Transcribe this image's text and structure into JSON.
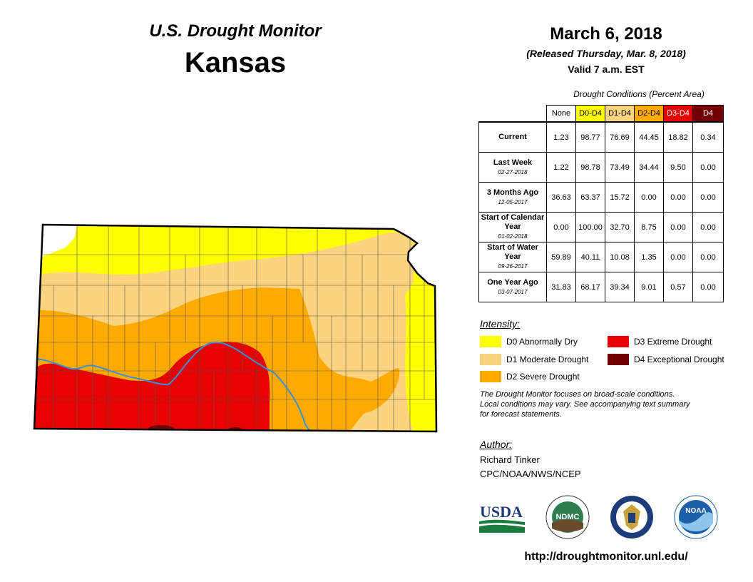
{
  "header": {
    "title": "U.S. Drought Monitor",
    "state": "Kansas"
  },
  "date": {
    "main": "March 6, 2018",
    "released": "(Released Thursday, Mar. 8, 2018)",
    "valid": "Valid 7 a.m. EST"
  },
  "table": {
    "caption": "Drought Conditions (Percent Area)",
    "columns": [
      "None",
      "D0-D4",
      "D1-D4",
      "D2-D4",
      "D3-D4",
      "D4"
    ],
    "column_colors": [
      "#ffffff",
      "#ffff00",
      "#fcd37f",
      "#ffaa00",
      "#e60000",
      "#730000"
    ],
    "rows": [
      {
        "label": "Current",
        "date": "",
        "values": [
          "1.23",
          "98.77",
          "76.69",
          "44.45",
          "18.82",
          "0.34"
        ]
      },
      {
        "label": "Last Week",
        "date": "02-27-2018",
        "values": [
          "1.22",
          "98.78",
          "73.49",
          "34.44",
          "9.50",
          "0.00"
        ]
      },
      {
        "label": "3 Months Ago",
        "date": "12-05-2017",
        "values": [
          "36.63",
          "63.37",
          "15.72",
          "0.00",
          "0.00",
          "0.00"
        ]
      },
      {
        "label": "Start of Calendar Year",
        "date": "01-02-2018",
        "values": [
          "0.00",
          "100.00",
          "32.70",
          "8.75",
          "0.00",
          "0.00"
        ]
      },
      {
        "label": "Start of Water Year",
        "date": "09-26-2017",
        "values": [
          "59.89",
          "40.11",
          "10.08",
          "1.35",
          "0.00",
          "0.00"
        ]
      },
      {
        "label": "One Year Ago",
        "date": "03-07-2017",
        "values": [
          "31.83",
          "68.17",
          "39.34",
          "9.01",
          "0.57",
          "0.00"
        ]
      }
    ]
  },
  "legend": {
    "title": "Intensity:",
    "items": [
      {
        "label": "D0 Abnormally Dry",
        "color": "#ffff00"
      },
      {
        "label": "D1 Moderate Drought",
        "color": "#fcd37f"
      },
      {
        "label": "D2 Severe Drought",
        "color": "#ffaa00"
      },
      {
        "label": "D3 Extreme Drought",
        "color": "#e60000"
      },
      {
        "label": "D4 Exceptional Drought",
        "color": "#730000"
      }
    ]
  },
  "note": {
    "line1": "The Drought Monitor focuses on broad-scale conditions.",
    "line2": "Local conditions may vary. See accompanying text summary",
    "line3": "for forecast statements."
  },
  "author": {
    "title": "Author:",
    "name": "Richard Tinker",
    "org": "CPC/NOAA/NWS/NCEP"
  },
  "logos": {
    "usda": "USDA",
    "ndmc": "NDMC",
    "noaa": "NOAA"
  },
  "url": "http://droughtmonitor.unl.edu/"
}
